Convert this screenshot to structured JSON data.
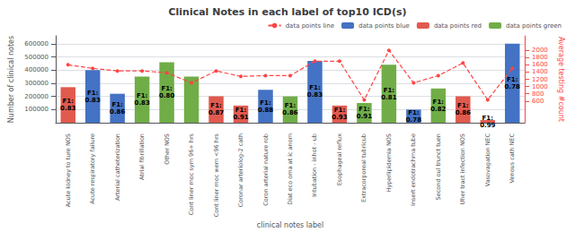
{
  "chart_data": {
    "type": "bar",
    "title": "Clinical Notes in each label of top10 ICD(s)",
    "xlabel": "clinical notes label",
    "ylabel": "Number of clinical notes",
    "y2label": "Average testing #count",
    "categories": [
      "Acute kidney to ture NOS",
      "Acute respiratory failure",
      "Arterial catheterization",
      "Atrial fibrillation",
      "Other NOS",
      "Cont liner moc sym 96+ hrs",
      "Cont liner moc wem <96 hrs",
      "Coronar arteriolog-2 cath",
      "Coron arterial nature rob",
      "Diat eco oma at ic anom",
      "Intubation - inhot - ub",
      "Esophageal reflux",
      "Extracorporeal tubricub",
      "Hyperlipidemia NOS",
      "Insert endotrachma tube",
      "Second oul trunct tuen",
      "Uher tract infection NOS",
      "Vasovagation NEC",
      "Venous cath NEC"
    ],
    "series": [
      {
        "name": "data points line",
        "type": "line",
        "axis": "y2",
        "color": "#ff4444",
        "line_style": "dashed",
        "marker": "circle",
        "values": [
          1600,
          1500,
          1430,
          1430,
          1380,
          1100,
          1430,
          1280,
          1300,
          1300,
          1700,
          1700,
          630,
          2000,
          1100,
          1300,
          1650,
          630,
          1500
        ]
      },
      {
        "name": "data points blue",
        "type": "bar",
        "color": "#4472c4",
        "values": [
          null,
          400000,
          220000,
          null,
          null,
          null,
          null,
          null,
          250000,
          null,
          470000,
          null,
          null,
          null,
          100000,
          null,
          null,
          null,
          600000
        ],
        "annotations": [
          null,
          "F1:\n0.83",
          "F1:\n0.86",
          null,
          null,
          null,
          null,
          null,
          "F1:\n0.88",
          null,
          "F1:\n0.83",
          null,
          null,
          null,
          "F1:\n0.78",
          null,
          null,
          null,
          "F1:\n0.78"
        ]
      },
      {
        "name": "data points red",
        "type": "bar",
        "color": "#e05a4e",
        "values": [
          270000,
          null,
          null,
          null,
          null,
          null,
          200000,
          130000,
          null,
          null,
          null,
          130000,
          null,
          null,
          null,
          null,
          200000,
          20000,
          null
        ],
        "annotations": [
          "F1:\n0.83",
          null,
          null,
          null,
          null,
          null,
          "F1:\n0.87",
          "F1:\n0.91",
          null,
          null,
          null,
          "F1:\n0.93",
          null,
          null,
          null,
          null,
          "F1:\n0.86",
          "F1:\n0.99",
          null
        ]
      },
      {
        "name": "data points green",
        "type": "bar",
        "color": "#70ad47",
        "values": [
          null,
          null,
          null,
          350000,
          460000,
          350000,
          null,
          null,
          null,
          200000,
          null,
          null,
          150000,
          440000,
          null,
          260000,
          null,
          null,
          null
        ],
        "annotations": [
          null,
          null,
          null,
          "F1:\n0.83",
          "F1:\n0.80",
          null,
          null,
          null,
          null,
          "F1:\n0.86",
          null,
          null,
          "F1:\n0.91",
          "F1:\n0.81",
          null,
          "F1:\n0.82",
          null,
          null,
          null
        ]
      }
    ],
    "ylim": [
      0,
      660000
    ],
    "yticks": [
      100000,
      200000,
      300000,
      400000,
      500000,
      600000
    ],
    "y2lim": [
      0,
      2400
    ],
    "y2ticks": [
      600,
      800,
      1000,
      1200,
      1400,
      1600,
      1800,
      2000
    ],
    "grid": true,
    "legend": "upper right"
  }
}
